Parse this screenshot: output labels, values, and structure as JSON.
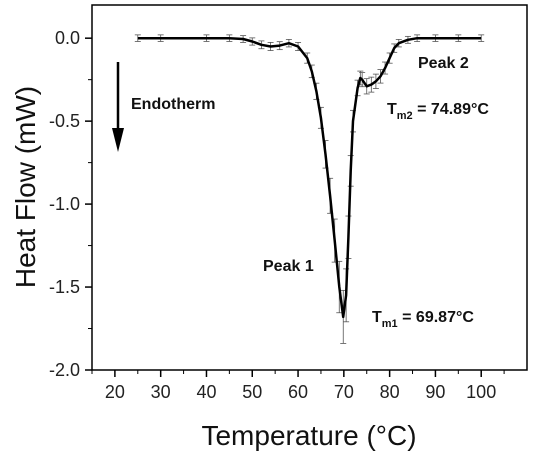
{
  "chart_data": {
    "type": "line",
    "xlabel": "Temperature (°C)",
    "ylabel": "Heat Flow (mW)",
    "xlim": [
      15,
      110
    ],
    "ylim": [
      -2.0,
      0.2
    ],
    "xticks": [
      20,
      30,
      40,
      50,
      60,
      70,
      80,
      90,
      100
    ],
    "xtick_labels": [
      "20",
      "30",
      "40",
      "50",
      "60",
      "70",
      "80",
      "90",
      "100"
    ],
    "yticks": [
      0.0,
      -0.5,
      -1.0,
      -1.5,
      -2.0
    ],
    "ytick_labels": [
      "0.0",
      "-0.5",
      "-1.0",
      "-1.5",
      "-2.0"
    ],
    "grid": false,
    "series": [
      {
        "color": "#000000",
        "error_bars": true,
        "x": [
          25,
          30,
          40,
          45,
          48,
          50,
          52,
          54,
          56,
          58,
          60,
          62,
          63,
          64,
          65,
          66,
          67,
          68,
          69,
          69.87,
          70.5,
          71,
          71.5,
          72,
          73,
          73.6,
          74,
          75,
          76,
          77,
          78,
          79,
          80,
          81,
          82,
          84,
          86,
          90,
          95,
          100
        ],
        "y": [
          0.0,
          0.0,
          0.0,
          0.0,
          -0.005,
          -0.02,
          -0.04,
          -0.05,
          -0.045,
          -0.03,
          -0.05,
          -0.12,
          -0.2,
          -0.32,
          -0.48,
          -0.7,
          -0.95,
          -1.22,
          -1.5,
          -1.68,
          -1.55,
          -1.2,
          -0.8,
          -0.5,
          -0.3,
          -0.24,
          -0.25,
          -0.29,
          -0.28,
          -0.26,
          -0.23,
          -0.18,
          -0.12,
          -0.06,
          -0.03,
          -0.01,
          0.0,
          0.0,
          0.0,
          0.0
        ]
      }
    ],
    "annotations": {
      "endotherm": "Endotherm",
      "peak1": "Peak 1",
      "peak2": "Peak 2",
      "tm1_main": "T",
      "tm1_sub": "m1",
      "tm1_value": " = 69.87°C",
      "tm2_main": "T",
      "tm2_sub": "m2",
      "tm2_value": " = 74.89°C"
    }
  }
}
